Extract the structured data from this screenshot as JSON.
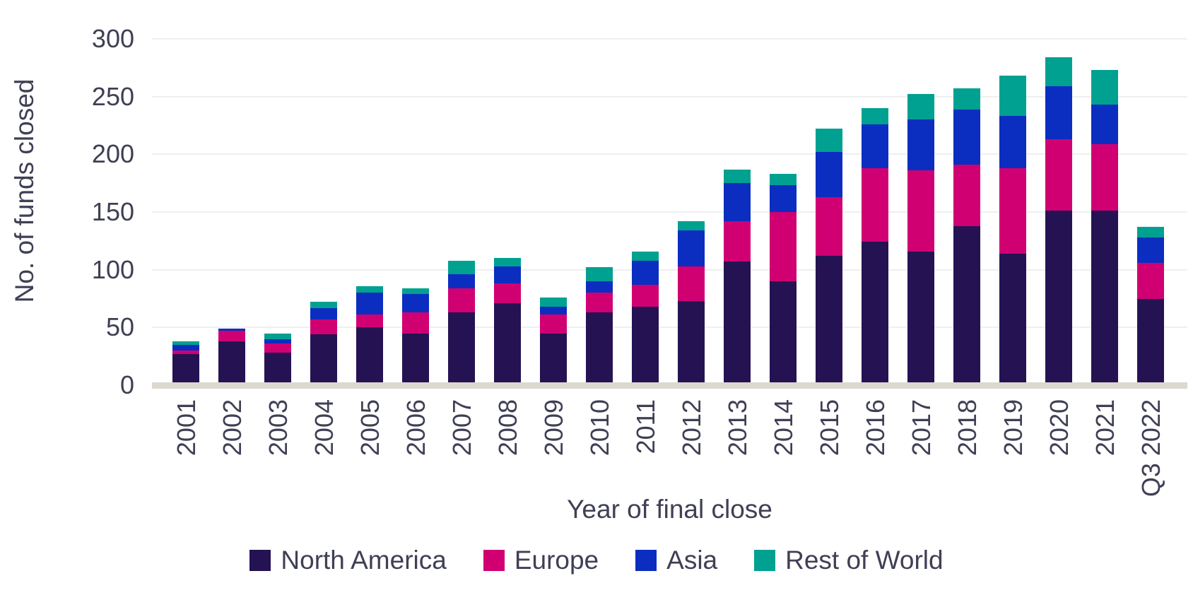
{
  "chart_data": {
    "type": "bar",
    "stacked": true,
    "title": "",
    "xlabel": "Year of final close",
    "ylabel": "No. of funds closed",
    "ylim": [
      0,
      300
    ],
    "yticks": [
      0,
      50,
      100,
      150,
      200,
      250,
      300
    ],
    "grid": true,
    "legend_position": "bottom",
    "categories": [
      "2001",
      "2002",
      "2003",
      "2004",
      "2005",
      "2006",
      "2007",
      "2008",
      "2009",
      "2010",
      "2011",
      "2012",
      "2013",
      "2014",
      "2015",
      "2016",
      "2017",
      "2018",
      "2019",
      "2020",
      "2021",
      "Q3 2022"
    ],
    "series": [
      {
        "name": "North America",
        "color": "#251253",
        "values": [
          27,
          38,
          28,
          44,
          50,
          45,
          63,
          71,
          45,
          63,
          68,
          73,
          107,
          90,
          112,
          124,
          116,
          138,
          114,
          151,
          151,
          75
        ]
      },
      {
        "name": "Europe",
        "color": "#d00073",
        "values": [
          3,
          9,
          8,
          13,
          11,
          18,
          21,
          17,
          16,
          17,
          19,
          30,
          35,
          60,
          51,
          64,
          70,
          53,
          74,
          62,
          58,
          31
        ]
      },
      {
        "name": "Asia",
        "color": "#0b2ec1",
        "values": [
          5,
          2,
          4,
          10,
          19,
          16,
          12,
          15,
          7,
          10,
          21,
          31,
          33,
          23,
          39,
          38,
          44,
          48,
          45,
          46,
          34,
          22
        ]
      },
      {
        "name": "Rest of World",
        "color": "#00a191",
        "values": [
          3,
          0,
          5,
          5,
          6,
          5,
          12,
          7,
          8,
          12,
          8,
          8,
          12,
          10,
          20,
          14,
          22,
          18,
          35,
          25,
          30,
          9
        ]
      }
    ],
    "totals": [
      38,
      49,
      45,
      72,
      86,
      84,
      108,
      110,
      76,
      102,
      116,
      142,
      187,
      183,
      222,
      240,
      252,
      257,
      268,
      284,
      273,
      137
    ],
    "colors": {
      "background": "#ffffff",
      "gridline": "#efefef",
      "axis_baseline": "#ddd8d0",
      "text": "#3f3f55"
    }
  }
}
